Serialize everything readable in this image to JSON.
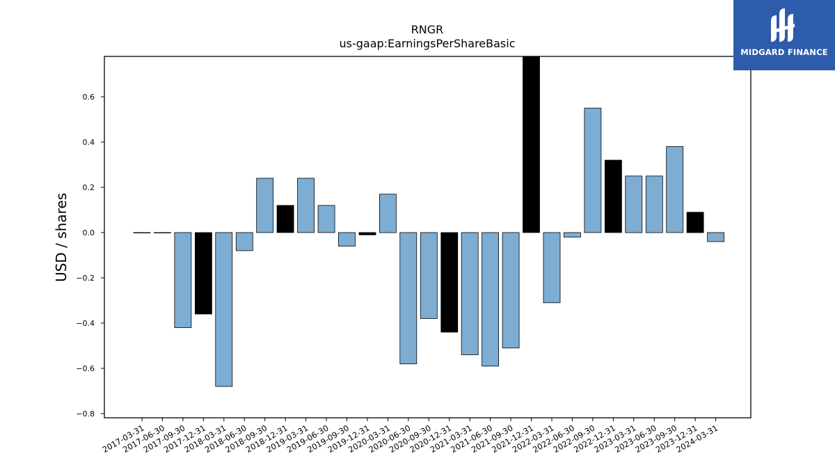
{
  "chart_data": {
    "type": "bar",
    "title": "RNGR",
    "subtitle": "us-gaap:EarningsPerShareBasic",
    "xlabel": "",
    "ylabel": "USD / shares",
    "ylim": [
      -0.82,
      0.78
    ],
    "yticks": [
      -0.8,
      -0.6,
      -0.4,
      -0.2,
      0.0,
      0.2,
      0.4,
      0.6
    ],
    "ytick_labels": [
      "−0.8",
      "−0.6",
      "−0.4",
      "−0.2",
      "0.0",
      "0.2",
      "0.4",
      "0.6"
    ],
    "grid": false,
    "categories": [
      "2017-03-31",
      "2017-06-30",
      "2017-09-30",
      "2017-12-31",
      "2018-03-31",
      "2018-06-30",
      "2018-09-30",
      "2018-12-31",
      "2019-03-31",
      "2019-06-30",
      "2019-09-30",
      "2019-12-31",
      "2020-03-31",
      "2020-06-30",
      "2020-09-30",
      "2020-12-31",
      "2021-03-31",
      "2021-06-30",
      "2021-09-30",
      "2021-12-31",
      "2022-03-31",
      "2022-06-30",
      "2022-09-30",
      "2022-12-31",
      "2023-03-31",
      "2023-06-30",
      "2023-09-30",
      "2023-12-31",
      "2024-03-31"
    ],
    "values": [
      0.0,
      0.0,
      -0.42,
      -0.36,
      -0.68,
      -0.08,
      0.24,
      0.12,
      0.24,
      0.12,
      -0.06,
      -0.01,
      0.17,
      -0.58,
      -0.38,
      -0.44,
      -0.54,
      -0.59,
      -0.51,
      0.78,
      -0.31,
      -0.02,
      0.55,
      0.32,
      0.25,
      0.25,
      0.38,
      0.09,
      -0.04
    ],
    "highlight": [
      false,
      false,
      false,
      true,
      false,
      false,
      false,
      true,
      false,
      false,
      false,
      true,
      false,
      false,
      false,
      true,
      false,
      false,
      false,
      true,
      false,
      false,
      false,
      true,
      false,
      false,
      false,
      true,
      false
    ],
    "colors": {
      "bar": "#7eadd3",
      "highlight_bar": "#000000",
      "edge": "#000000"
    }
  },
  "logo": {
    "text": "MIDGARD FINANCE",
    "icon": "midgard-logo-icon",
    "background": "#2e5cac"
  }
}
